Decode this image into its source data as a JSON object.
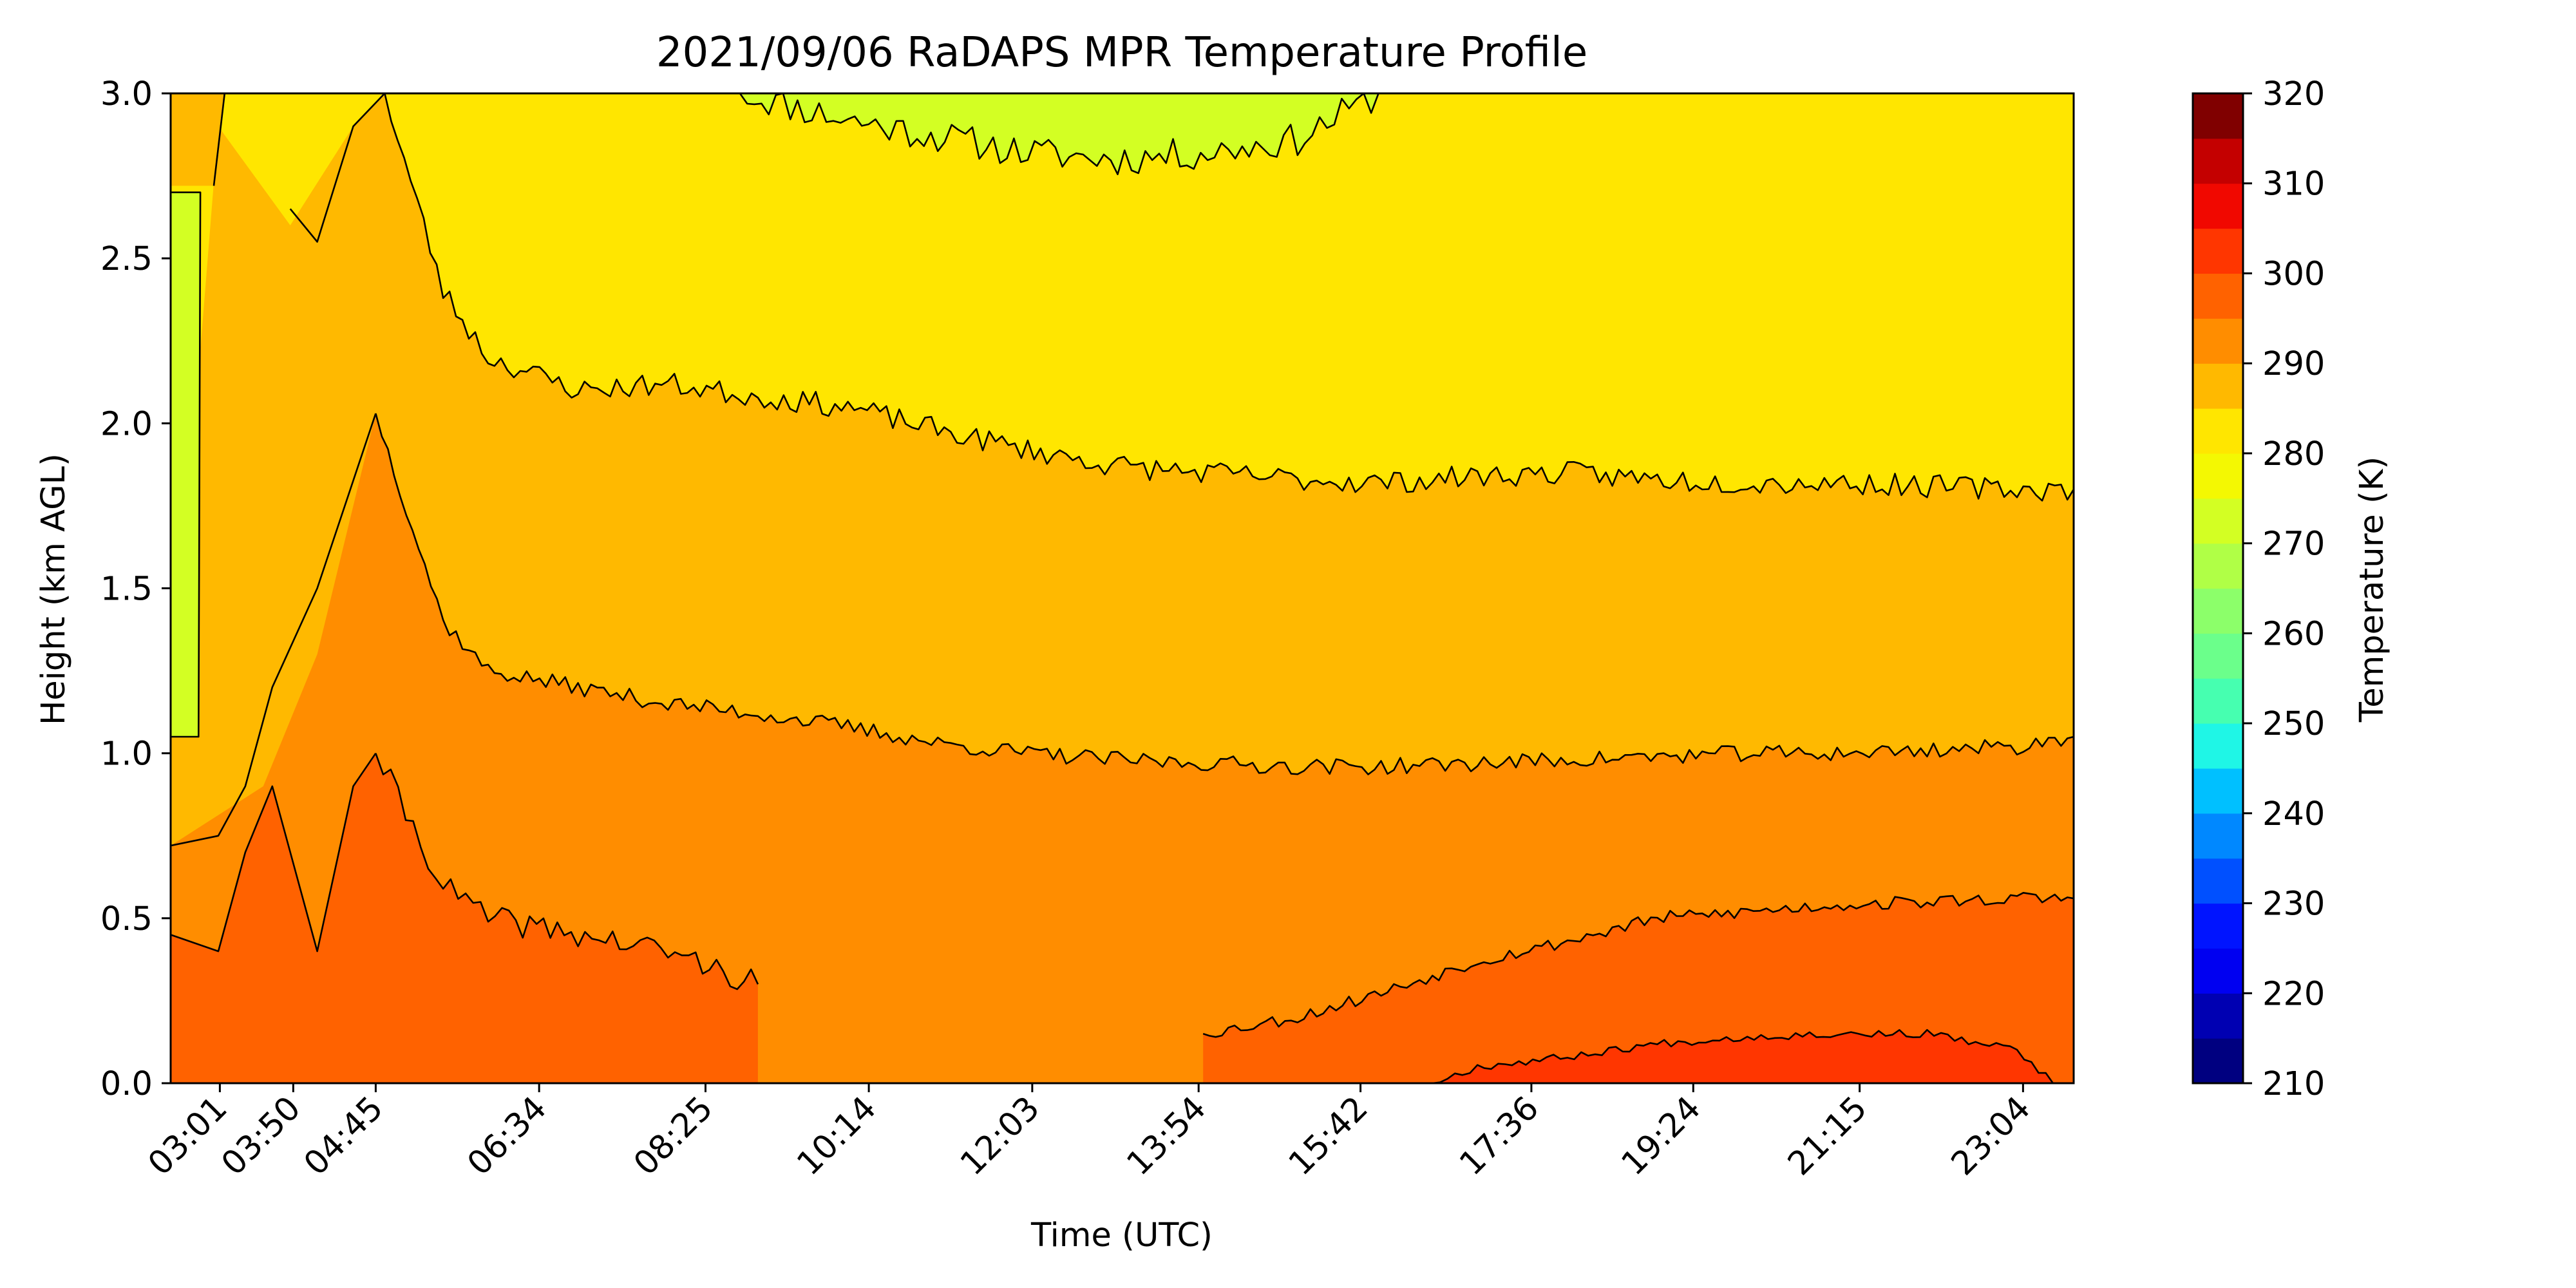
{
  "chart_data": {
    "type": "contourf",
    "title": "2021/09/06 RaDAPS MPR Temperature Profile",
    "xlabel": "Time (UTC)",
    "ylabel": "Height (km AGL)",
    "ylim": [
      0.0,
      3.0
    ],
    "y_ticks": [
      "0.0",
      "0.5",
      "1.0",
      "1.5",
      "2.0",
      "2.5",
      "3.0"
    ],
    "x_range_hours": [
      2.47,
      23.63
    ],
    "x_ticks": [
      {
        "hours": 3.017,
        "label": "03:01"
      },
      {
        "hours": 3.833,
        "label": "03:50"
      },
      {
        "hours": 4.75,
        "label": "04:45"
      },
      {
        "hours": 6.567,
        "label": "06:34"
      },
      {
        "hours": 8.417,
        "label": "08:25"
      },
      {
        "hours": 10.233,
        "label": "10:14"
      },
      {
        "hours": 12.05,
        "label": "12:03"
      },
      {
        "hours": 13.9,
        "label": "13:54"
      },
      {
        "hours": 15.7,
        "label": "15:42"
      },
      {
        "hours": 17.6,
        "label": "17:36"
      },
      {
        "hours": 19.4,
        "label": "19:24"
      },
      {
        "hours": 21.25,
        "label": "21:15"
      },
      {
        "hours": 23.067,
        "label": "23:04"
      }
    ],
    "colorbar": {
      "label": "Temperature (K)",
      "range": [
        210,
        320
      ],
      "ticks": [
        "210",
        "220",
        "230",
        "240",
        "250",
        "260",
        "270",
        "280",
        "290",
        "300",
        "310",
        "320"
      ],
      "levels": [
        210,
        215,
        220,
        225,
        230,
        235,
        240,
        245,
        250,
        255,
        260,
        265,
        270,
        275,
        280,
        285,
        290,
        295,
        300,
        305,
        310,
        315,
        320
      ],
      "colors": [
        "#000080",
        "#0000b2",
        "#0000f1",
        "#0014ff",
        "#0050ff",
        "#0088ff",
        "#00c0ff",
        "#1ff6e6",
        "#46ffb0",
        "#6bff8b",
        "#8cff6a",
        "#b0ff46",
        "#d3ff23",
        "#f4f802",
        "#ffe600",
        "#ffb900",
        "#ff8d00",
        "#ff6200",
        "#ff3600",
        "#f10800",
        "#c40000",
        "#800000"
      ]
    },
    "temperature_bands": [
      {
        "range": [
          275,
          280
        ],
        "color": "#d3ff23"
      },
      {
        "range": [
          280,
          285
        ],
        "color": "#ffe600"
      },
      {
        "range": [
          285,
          290
        ],
        "color": "#ffb900"
      },
      {
        "range": [
          290,
          295
        ],
        "color": "#ff8d00"
      },
      {
        "range": [
          295,
          300
        ],
        "color": "#ff6200"
      },
      {
        "range": [
          300,
          305
        ],
        "color": "#ff3600"
      }
    ],
    "contour_heights_km": {
      "275K": {
        "hours": [
          8.8,
          10.0,
          11.0,
          12.0,
          13.0,
          14.0,
          15.0,
          15.9
        ],
        "height": [
          3.0,
          2.92,
          2.87,
          2.82,
          2.8,
          2.82,
          2.86,
          3.0
        ]
      },
      "280K": {
        "hours": [
          4.85,
          5.5,
          6.0,
          7.0,
          8.0,
          9.0,
          10.0,
          11.0,
          12.0,
          13.0,
          14.0,
          15.0,
          16.0,
          17.0,
          18.0,
          19.0,
          20.0,
          21.0,
          22.0,
          23.0,
          23.63
        ],
        "height": [
          3.0,
          2.4,
          2.2,
          2.1,
          2.12,
          2.08,
          2.05,
          1.98,
          1.92,
          1.87,
          1.85,
          1.83,
          1.82,
          1.84,
          1.85,
          1.83,
          1.82,
          1.82,
          1.81,
          1.8,
          1.8
        ]
      },
      "285K": {
        "hours": [
          4.75,
          5.5,
          6.0,
          7.0,
          8.0,
          9.0,
          10.0,
          11.0,
          12.0,
          13.0,
          14.0,
          15.0,
          16.0,
          17.0,
          18.0,
          19.0,
          20.0,
          21.0,
          22.0,
          23.0,
          23.63
        ],
        "height": [
          2.03,
          1.4,
          1.25,
          1.2,
          1.15,
          1.12,
          1.08,
          1.03,
          1.0,
          0.98,
          0.97,
          0.96,
          0.96,
          0.97,
          0.98,
          0.99,
          1.0,
          1.0,
          1.01,
          1.02,
          1.05
        ]
      },
      "290K": {
        "hours": [
          4.75,
          5.5,
          6.0,
          7.0,
          8.0,
          9.0
        ],
        "height": [
          1.0,
          0.6,
          0.5,
          0.45,
          0.4,
          0.3
        ]
      },
      "295K": {
        "hours": [
          13.95,
          15.0,
          16.0,
          17.0,
          18.0,
          19.0,
          20.0,
          21.0,
          22.0,
          23.0,
          23.63
        ],
        "height": [
          0.15,
          0.2,
          0.28,
          0.37,
          0.43,
          0.5,
          0.52,
          0.54,
          0.55,
          0.56,
          0.56
        ]
      },
      "300K": {
        "hours": [
          16.5,
          17.0,
          18.0,
          19.0,
          20.0,
          21.0,
          22.0,
          23.0,
          23.4
        ],
        "height": [
          0.0,
          0.05,
          0.08,
          0.12,
          0.14,
          0.15,
          0.15,
          0.1,
          0.0
        ]
      }
    }
  }
}
